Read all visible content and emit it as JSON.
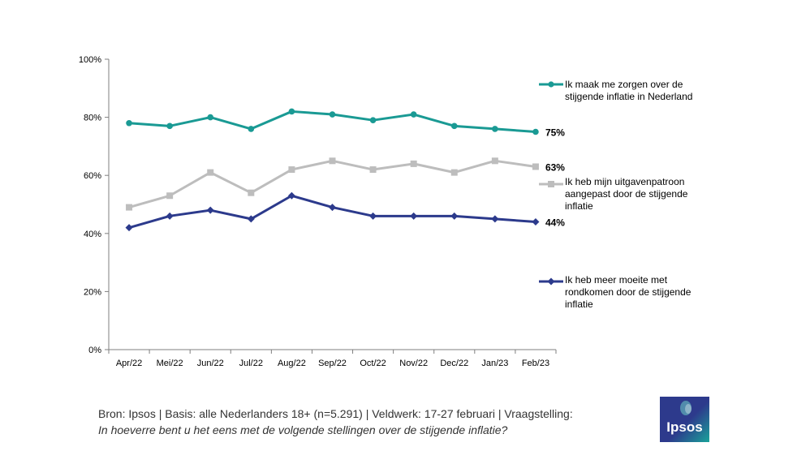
{
  "chart_data": {
    "type": "line",
    "categories": [
      "Apr/22",
      "Mei/22",
      "Jun/22",
      "Jul/22",
      "Aug/22",
      "Sep/22",
      "Oct/22",
      "Nov/22",
      "Dec/22",
      "Jan/23",
      "Feb/23"
    ],
    "y_ticks": [
      "0%",
      "20%",
      "40%",
      "60%",
      "80%",
      "100%"
    ],
    "ylim": [
      0,
      100
    ],
    "grid": false,
    "series": [
      {
        "name": "Ik maak me zorgen over de stijgende inflatie in Nederland",
        "legend_lines": [
          "Ik maak me zorgen over de",
          "stijgende inflatie in Nederland"
        ],
        "values": [
          78,
          77,
          80,
          76,
          82,
          81,
          79,
          81,
          77,
          76,
          75
        ],
        "end_label": "75%",
        "color": "#1a9a94",
        "marker": "circle"
      },
      {
        "name": "Ik heb mijn uitgavenpatroon aangepast door de stijgende inflatie",
        "legend_lines": [
          "Ik heb mijn uitgavenpatroon",
          "aangepast door de stijgende",
          "inflatie"
        ],
        "values": [
          49,
          53,
          61,
          54,
          62,
          65,
          62,
          64,
          61,
          65,
          63
        ],
        "end_label": "63%",
        "color": "#bdbdbd",
        "marker": "square"
      },
      {
        "name": "Ik heb meer moeite met rondkomen door de stijgende inflatie",
        "legend_lines": [
          "Ik heb meer moeite met",
          "rondkomen door de stijgende",
          "inflatie"
        ],
        "values": [
          42,
          46,
          48,
          45,
          53,
          49,
          46,
          46,
          46,
          45,
          44
        ],
        "end_label": "44%",
        "color": "#2c3a8c",
        "marker": "diamond"
      }
    ]
  },
  "footer": {
    "source": "Bron: Ipsos | Basis: alle Nederlanders 18+ (n=5.291) | Veldwerk: 17-27 februari | Vraagstelling:",
    "question": "In hoeverre bent u het eens met de volgende stellingen over de stijgende inflatie?"
  },
  "logo": {
    "text": "Ipsos"
  }
}
